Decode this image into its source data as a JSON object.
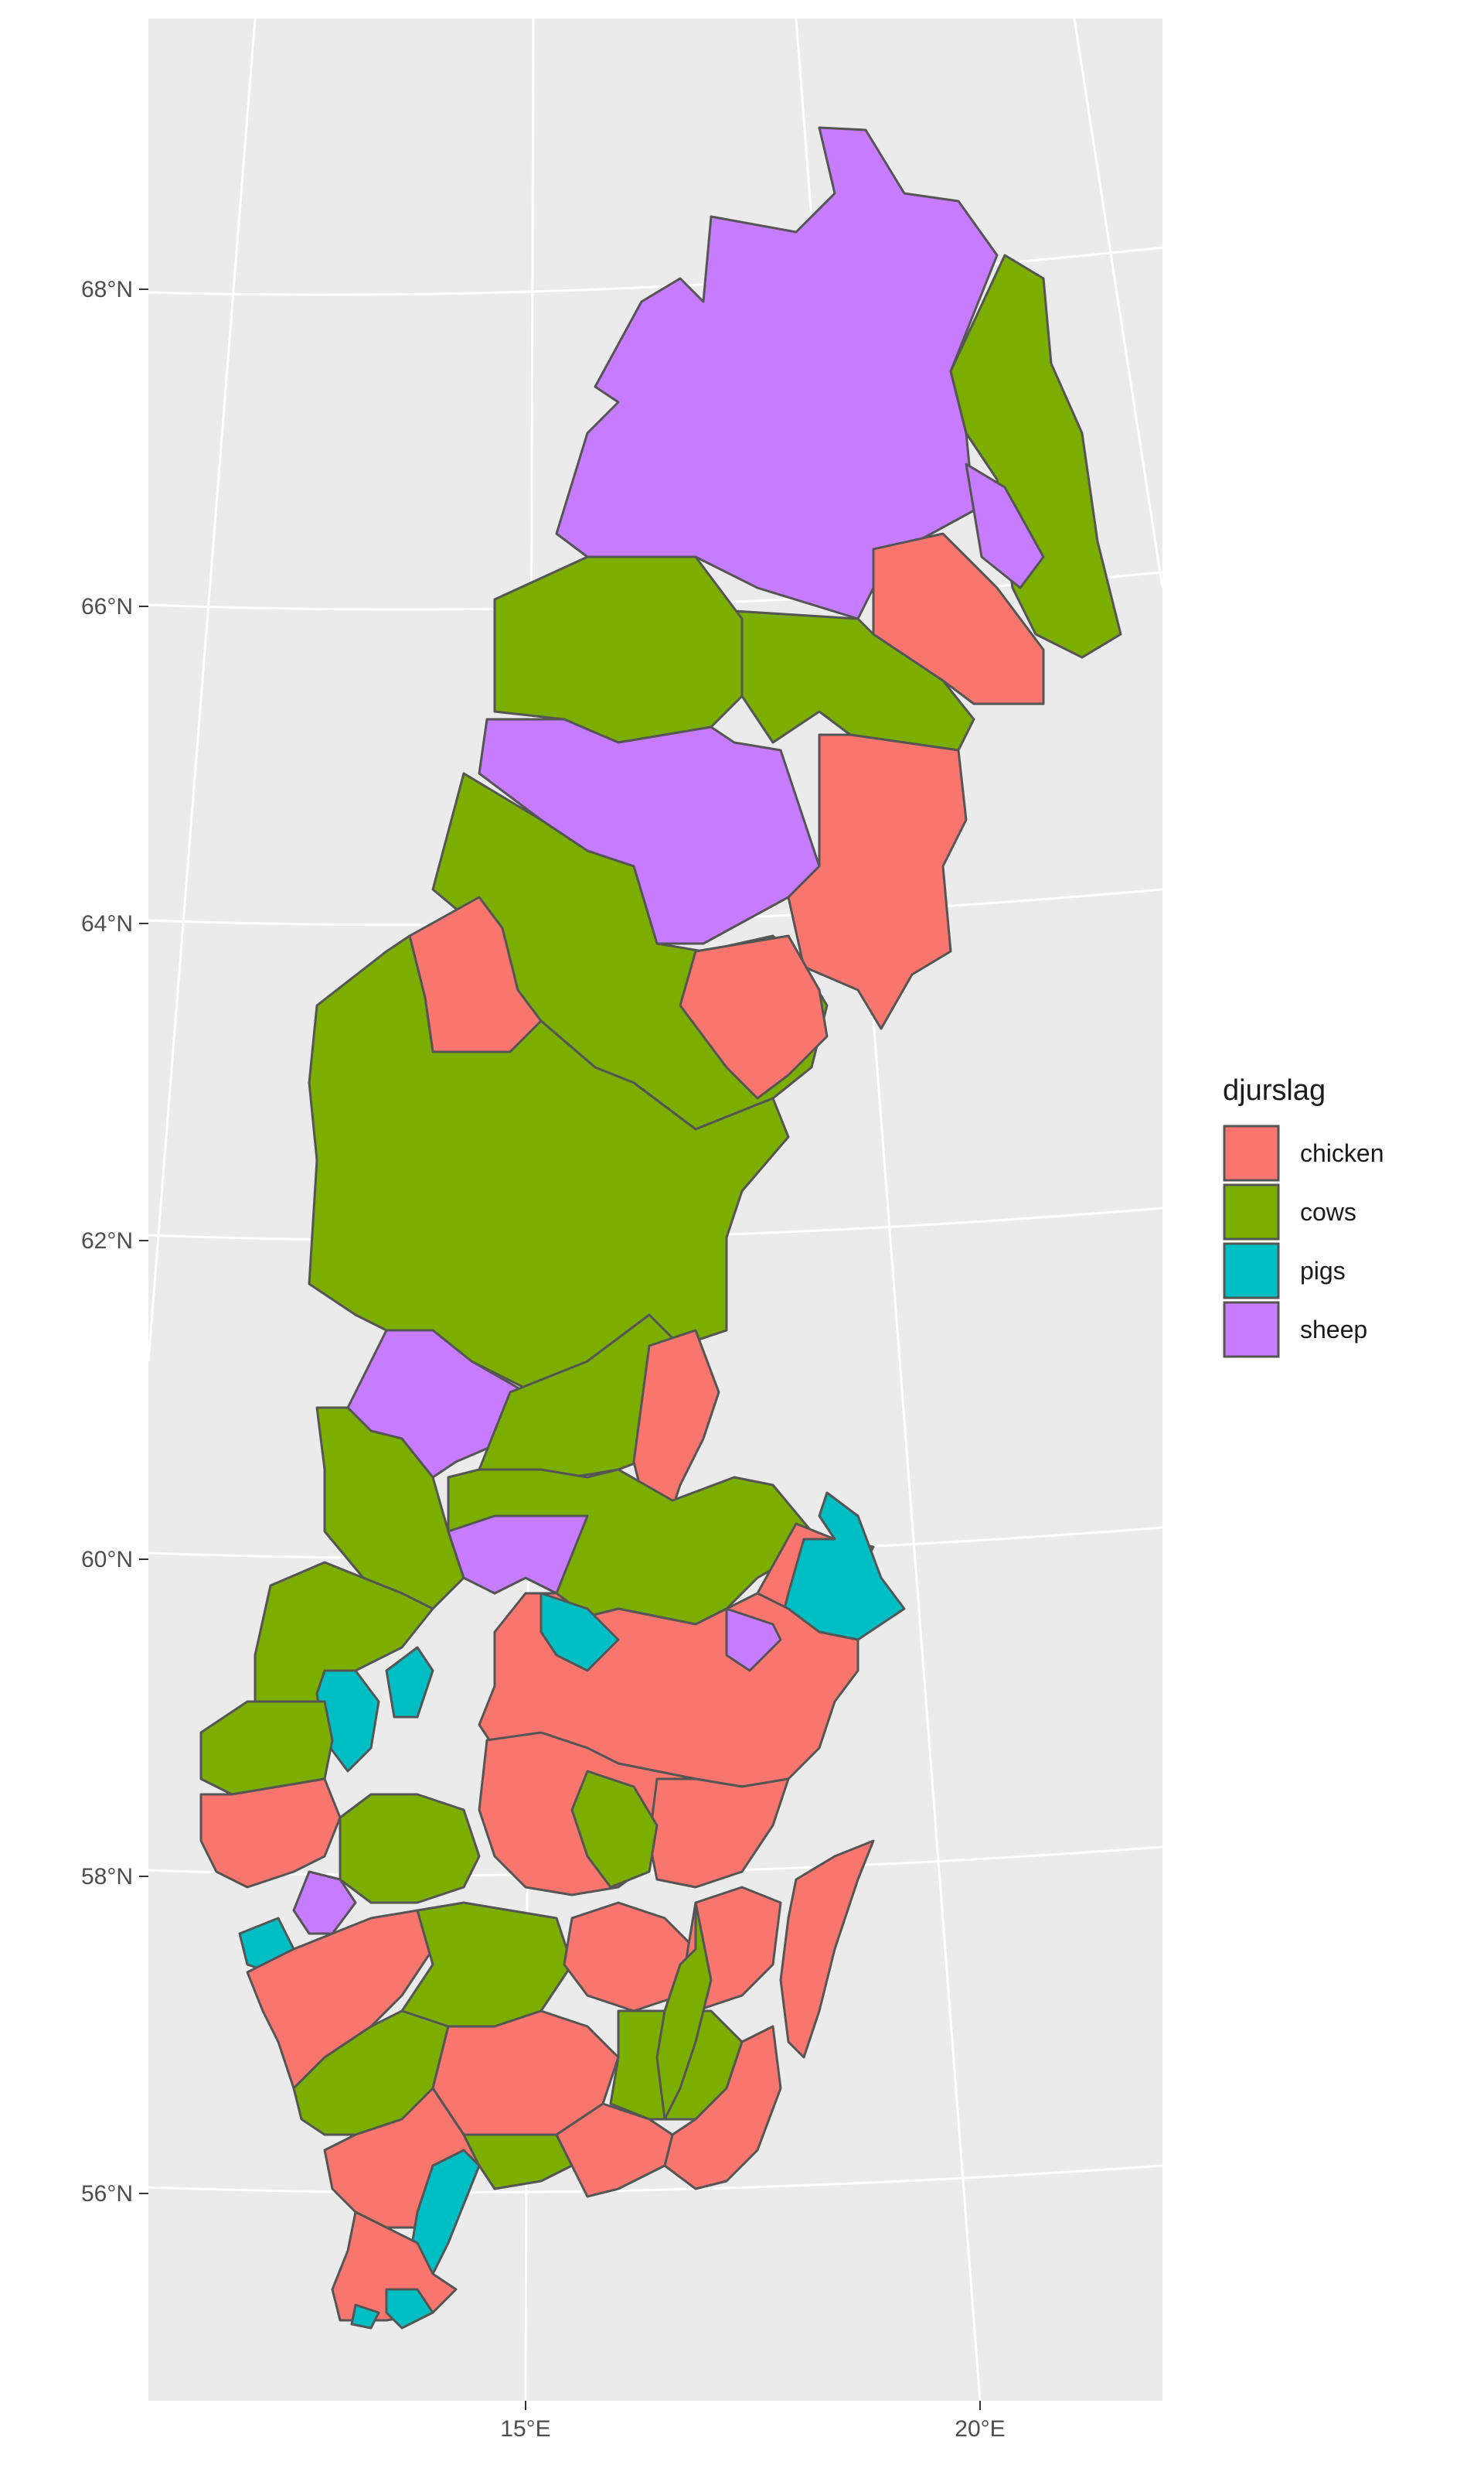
{
  "chart_data": {
    "type": "choropleth",
    "region": "Sweden municipalities",
    "y_ticks": [
      "68°N",
      "66°N",
      "64°N",
      "62°N",
      "60°N",
      "58°N",
      "56°N"
    ],
    "x_ticks": [
      "15°E",
      "20°E"
    ],
    "legend": {
      "title": "djurslag",
      "placement": "right",
      "entries": [
        {
          "label": "chicken",
          "color": "#F8766D"
        },
        {
          "label": "cows",
          "color": "#7CAE00"
        },
        {
          "label": "pigs",
          "color": "#00BFC4"
        },
        {
          "label": "sheep",
          "color": "#C77CFF"
        }
      ]
    },
    "panel_background": "#EBEBEB",
    "grid_color": "#FFFFFF",
    "border_color": "#555555"
  }
}
